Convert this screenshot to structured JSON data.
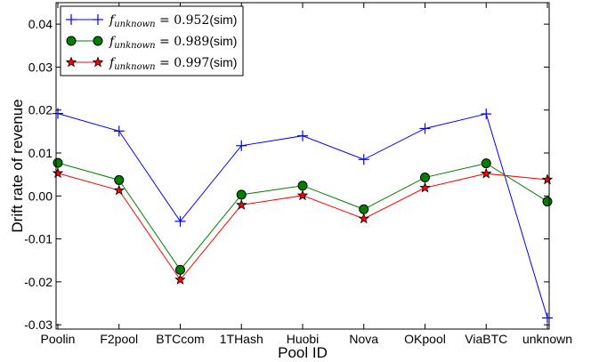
{
  "chart_data": {
    "type": "line",
    "xlabel": "Pool ID",
    "ylabel": "Drift rate of revenue",
    "categories": [
      "Poolin",
      "F2pool",
      "BTCcom",
      "1THash",
      "Huobi",
      "Nova",
      "OKpool",
      "ViaBTC",
      "unknown"
    ],
    "ylim": [
      -0.031,
      0.045
    ],
    "yticks": [
      0.04,
      0.03,
      0.02,
      0.01,
      0.0,
      -0.01,
      -0.02,
      -0.03
    ],
    "ytick_labels": [
      "0.04",
      "0.03",
      "0.02",
      "0.01",
      "0.00",
      "-0.01",
      "-0.02",
      "-0.03"
    ],
    "grid": false,
    "legend_position": "top-left",
    "series": [
      {
        "label_var": "f",
        "label_sub": "unknown",
        "label_eq": " = 0.952",
        "label_suffix": "(sim)",
        "color": "#0000ff",
        "marker": "plus",
        "values": [
          0.0192,
          0.0151,
          -0.0059,
          0.0117,
          0.014,
          0.0085,
          0.0157,
          0.0191,
          -0.0284
        ]
      },
      {
        "label_var": "f",
        "label_sub": "unknown",
        "label_eq": " = 0.989",
        "label_suffix": "(sim)",
        "color": "#008000",
        "marker": "circle",
        "values": [
          0.0077,
          0.0037,
          -0.0172,
          0.0003,
          0.0024,
          -0.0031,
          0.0043,
          0.0076,
          -0.0013
        ]
      },
      {
        "label_var": "f",
        "label_sub": "unknown",
        "label_eq": " = 0.997",
        "label_suffix": "(sim)",
        "color": "#ff0000",
        "marker": "star",
        "values": [
          0.0053,
          0.0013,
          -0.0195,
          -0.0021,
          0.0001,
          -0.0053,
          0.0019,
          0.0052,
          0.0038
        ]
      }
    ]
  }
}
